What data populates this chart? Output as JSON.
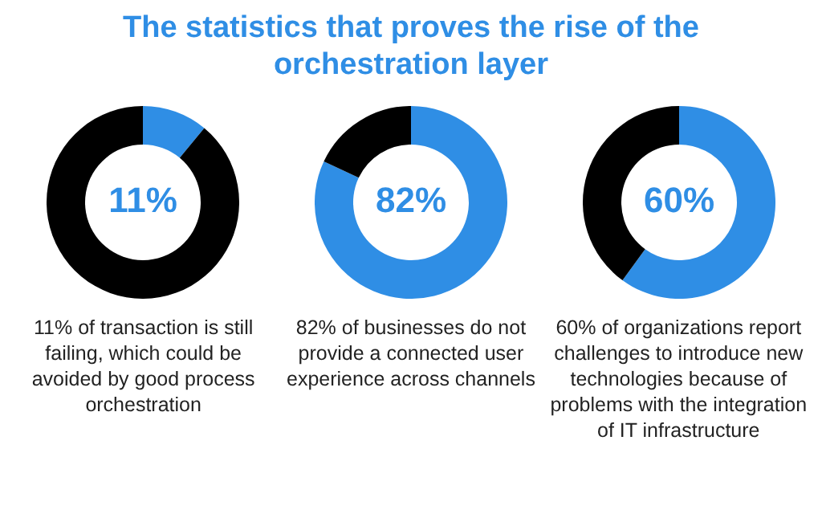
{
  "chart_data": [
    {
      "type": "donut",
      "title": "The statistics that proves the rise of the orchestration layer",
      "categories": [
        null,
        null
      ],
      "values": [
        11,
        89
      ],
      "colors": [
        "#2f8ee5",
        "#000000"
      ],
      "value_labels": [
        "11%",
        null
      ],
      "legend": false,
      "annotations": [
        "11% of transaction is still failing, which could be avoided by good process orchestration"
      ]
    },
    {
      "type": "donut",
      "categories": [
        null,
        null
      ],
      "values": [
        82,
        18
      ],
      "colors": [
        "#2f8ee5",
        "#000000"
      ],
      "value_labels": [
        "82%",
        null
      ],
      "legend": false,
      "annotations": [
        "82% of businesses do not provide a connected user experience across channels"
      ]
    },
    {
      "type": "donut",
      "categories": [
        null,
        null
      ],
      "values": [
        60,
        40
      ],
      "colors": [
        "#2f8ee5",
        "#000000"
      ],
      "value_labels": [
        "60%",
        null
      ],
      "legend": false,
      "annotations": [
        "60% of organizations report challenges to introduce new technologies because of problems with the integration of IT infrastructure"
      ]
    }
  ]
}
